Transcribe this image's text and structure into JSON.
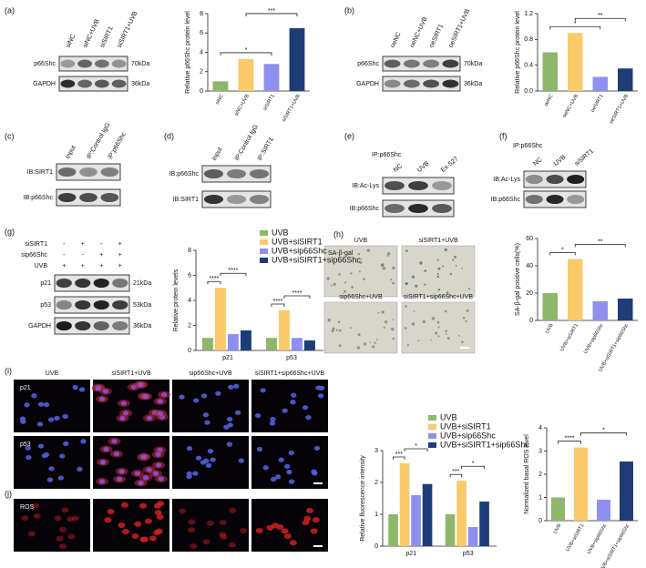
{
  "panels": {
    "a": {
      "label": "(a)",
      "lanes": [
        "siNC",
        "siNC+UVB",
        "siSIRT1",
        "siSIRT1+UVB"
      ],
      "rows": [
        "p66Shc",
        "GAPDH"
      ],
      "sizes": [
        "70kDa",
        "36kDa"
      ]
    },
    "b": {
      "label": "(b)",
      "lanes": [
        "oeNC",
        "oeNC+UVB",
        "oeSIRT1",
        "oeSIRT1+UVB"
      ],
      "rows": [
        "p66Shc",
        "GAPDH"
      ],
      "sizes": [
        "70kDa",
        "36kDa"
      ]
    },
    "c": {
      "label": "(c)",
      "lanes": [
        "Input",
        "IP:Control IgG",
        "IP:p66Shc"
      ],
      "rows": [
        "IB:SIRT1",
        "IB:p66Shc"
      ]
    },
    "d": {
      "label": "(d)",
      "lanes": [
        "Input",
        "IP:Control IgG",
        "IP:SIRT1"
      ],
      "rows": [
        "IB:p66Shc",
        "IB:SIRT1"
      ]
    },
    "e": {
      "label": "(e)",
      "ip": "IP:p66Shc",
      "lanes": [
        "NC",
        "UVB",
        "Ex-527"
      ],
      "rows": [
        "IB:Ac-Lys",
        "IB:p66Shc"
      ]
    },
    "f": {
      "label": "(f)",
      "ip": "IP:p66Shc",
      "lanes": [
        "NC",
        "UVB",
        "siSIRT1"
      ],
      "rows": [
        "IB:Ac-Lys",
        "IB:p66Shc"
      ]
    },
    "g": {
      "label": "(g)",
      "conditions": [
        {
          "name": "siSIRT1",
          "marks": [
            "-",
            "+",
            "-",
            "+"
          ]
        },
        {
          "name": "sip66Shc",
          "marks": [
            "-",
            "-",
            "+",
            "+"
          ]
        },
        {
          "name": "UVB",
          "marks": [
            "+",
            "+",
            "+",
            "+"
          ]
        }
      ],
      "rows": [
        "p21",
        "p53",
        "GAPDH"
      ],
      "sizes": [
        "21kDa",
        "53kDa",
        "36kDa"
      ]
    },
    "h": {
      "label": "(h)",
      "stain": "SA-β-gal",
      "images": [
        "UVB",
        "siSIRT1+UVB",
        "sip66Shc+UVB",
        "siSIRT1+sip66Shc+UVB"
      ]
    },
    "i": {
      "label": "(i)",
      "columns": [
        "UVB",
        "siSIRT1+UVB",
        "sip66Shc+UVB",
        "siSIRT1+sip66Shc+UVB"
      ],
      "rows": [
        "p21",
        "p53"
      ]
    },
    "j": {
      "label": "(j)",
      "rows": [
        "ROS"
      ]
    }
  },
  "chart_data": [
    {
      "type": "bar",
      "ylabel": "Relative p66Shc protein level",
      "categories": [
        "siNC",
        "siNC+UVB",
        "siSIRT1",
        "siSIRT1+UVB"
      ],
      "values": [
        1.0,
        3.3,
        2.8,
        6.5
      ],
      "colors": [
        "#8db76a",
        "#f9c96a",
        "#8f8ff0",
        "#1e3c78"
      ],
      "ylim": [
        0,
        8
      ],
      "yticks": [
        0,
        2,
        4,
        6,
        8
      ],
      "annotations": [
        {
          "text": "*",
          "between": [
            "siNC",
            "siSIRT1"
          ]
        },
        {
          "text": "***",
          "between": [
            "siNC+UVB",
            "siSIRT1+UVB"
          ]
        }
      ]
    },
    {
      "type": "bar",
      "ylabel": "Relative p66Shc protein level",
      "categories": [
        "oeNC",
        "oeNC+UVB",
        "oeSIRT1",
        "oeSIRT1+UVB"
      ],
      "values": [
        0.6,
        0.9,
        0.22,
        0.35
      ],
      "colors": [
        "#8db76a",
        "#f9c96a",
        "#8f8ff0",
        "#1e3c78"
      ],
      "ylim": [
        0,
        1.2
      ],
      "yticks": [
        {
          "value": 0,
          "label": "0.0"
        },
        0.4,
        0.8,
        {
          "value": 1.2,
          "label": "1.2"
        }
      ],
      "annotations": [
        {
          "text": "*",
          "between": [
            "oeNC",
            "oeSIRT1"
          ]
        },
        {
          "text": "**",
          "between": [
            "oeNC+UVB",
            "oeSIRT1+UVB"
          ]
        }
      ]
    },
    {
      "type": "grouped-bar",
      "ylabel": "Relative protein levels",
      "categories": [
        "p21",
        "p53"
      ],
      "series": [
        {
          "name": "UVB",
          "color": "#8db76a",
          "values": [
            1.0,
            1.0
          ]
        },
        {
          "name": "UVB+siSIRT1",
          "color": "#f9c96a",
          "values": [
            5.0,
            3.2
          ]
        },
        {
          "name": "UVB+sip66Shc",
          "color": "#8f8ff0",
          "values": [
            1.3,
            1.0
          ]
        },
        {
          "name": "UVB+siSIRT1+sip66Shc",
          "color": "#1e3c78",
          "values": [
            1.6,
            0.8
          ]
        }
      ],
      "ylim": [
        0,
        8
      ],
      "yticks": [
        0,
        2,
        4,
        6,
        8
      ],
      "annotations": [
        {
          "text": "****",
          "category": "p21",
          "between": [
            "UVB",
            "UVB+siSIRT1"
          ]
        },
        {
          "text": "****",
          "category": "p21",
          "between": [
            "UVB+siSIRT1",
            "UVB+siSIRT1+sip66Shc"
          ]
        },
        {
          "text": "****",
          "category": "p53",
          "between": [
            "UVB",
            "UVB+siSIRT1"
          ]
        },
        {
          "text": "****",
          "category": "p53",
          "between": [
            "UVB+siSIRT1",
            "UVB+siSIRT1+sip66Shc"
          ]
        }
      ]
    },
    {
      "type": "bar",
      "ylabel": "SA-β-gal positive cells(%)",
      "categories": [
        "UVB",
        "UVB+siSIRT1",
        "UVB+sip66Shc",
        "UVB+siSIRT1+sip66Shc"
      ],
      "values": [
        20,
        45,
        14,
        16
      ],
      "colors": [
        "#8db76a",
        "#f9c96a",
        "#8f8ff0",
        "#1e3c78"
      ],
      "ylim": [
        0,
        60
      ],
      "yticks": [
        0,
        20,
        40,
        60
      ],
      "annotations": [
        {
          "text": "*",
          "between": [
            "UVB",
            "UVB+siSIRT1"
          ]
        },
        {
          "text": "**",
          "between": [
            "UVB+siSIRT1",
            "UVB+siSIRT1+sip66Shc"
          ]
        }
      ]
    },
    {
      "type": "grouped-bar",
      "ylabel": "Relative fluorescence intensity",
      "categories": [
        "p21",
        "p53"
      ],
      "series": [
        {
          "name": "UVB",
          "color": "#8db76a",
          "values": [
            1.0,
            1.0
          ]
        },
        {
          "name": "UVB+siSIRT1",
          "color": "#f9c96a",
          "values": [
            2.6,
            2.05
          ]
        },
        {
          "name": "UVB+sip66Shc",
          "color": "#8f8ff0",
          "values": [
            1.6,
            0.6
          ]
        },
        {
          "name": "UVB+siSIRT1+sip66Shc",
          "color": "#1e3c78",
          "values": [
            1.95,
            1.4
          ]
        }
      ],
      "ylim": [
        0,
        3
      ],
      "yticks": [
        0,
        1,
        2,
        3
      ],
      "annotations": [
        {
          "text": "***",
          "category": "p21",
          "between": [
            "UVB",
            "UVB+siSIRT1"
          ]
        },
        {
          "text": "*",
          "category": "p21",
          "between": [
            "UVB+siSIRT1",
            "UVB+siSIRT1+sip66Shc"
          ]
        },
        {
          "text": "***",
          "category": "p53",
          "between": [
            "UVB",
            "UVB+siSIRT1"
          ]
        },
        {
          "text": "*",
          "category": "p53",
          "between": [
            "UVB+siSIRT1",
            "UVB+siSIRT1+sip66Shc"
          ]
        }
      ]
    },
    {
      "type": "bar",
      "ylabel": "Normalized basal ROS level",
      "categories": [
        "UVB",
        "UVB+siSIRT1",
        "UVB+sip66Shc",
        "UVB+siSIRT1+sip66Shc"
      ],
      "values": [
        1.0,
        3.15,
        0.9,
        2.55
      ],
      "colors": [
        "#8db76a",
        "#f9c96a",
        "#8f8ff0",
        "#1e3c78"
      ],
      "ylim": [
        0,
        4
      ],
      "yticks": [
        0,
        1,
        2,
        3,
        4
      ],
      "annotations": [
        {
          "text": "****",
          "between": [
            "UVB",
            "UVB+siSIRT1"
          ]
        },
        {
          "text": "*",
          "between": [
            "UVB+siSIRT1",
            "UVB+siSIRT1+sip66Shc"
          ]
        }
      ]
    }
  ]
}
